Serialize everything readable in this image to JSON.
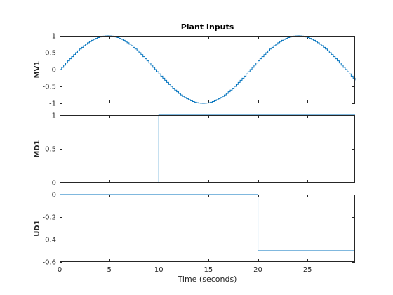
{
  "chart_data": [
    {
      "type": "line",
      "step": true,
      "title": "Plant Inputs",
      "ylabel": "MV1",
      "xlim": [
        0,
        29.8
      ],
      "ylim": [
        -1,
        1
      ],
      "xticks": [
        "0",
        "5",
        "10",
        "15",
        "20",
        "25"
      ],
      "yticks": [
        "1",
        "0.5",
        "0",
        "-0.5",
        "-1"
      ],
      "series": [
        {
          "color": "#0072bd",
          "signal": "sine",
          "amplitude": 1,
          "period_seconds": 19.2,
          "sample_time_seconds": 0.2,
          "start": 0,
          "end": 29.8
        }
      ]
    },
    {
      "type": "line",
      "step": true,
      "ylabel": "MD1",
      "xlim": [
        0,
        29.8
      ],
      "ylim": [
        0,
        1
      ],
      "xticks": [
        "0",
        "5",
        "10",
        "15",
        "20",
        "25"
      ],
      "yticks": [
        "1",
        "0.5",
        "0"
      ],
      "series": [
        {
          "color": "#0072bd",
          "x": [
            0,
            10,
            10,
            29.8
          ],
          "y": [
            0,
            0,
            1,
            1
          ]
        }
      ]
    },
    {
      "type": "line",
      "step": true,
      "ylabel": "UD1",
      "xlabel": "Time (seconds)",
      "xlim": [
        0,
        29.8
      ],
      "ylim": [
        -0.6,
        0
      ],
      "xticks": [
        "0",
        "5",
        "10",
        "15",
        "20",
        "25"
      ],
      "yticks": [
        "0",
        "-0.2",
        "-0.4",
        "-0.6"
      ],
      "series": [
        {
          "color": "#0072bd",
          "x": [
            0,
            20,
            20,
            29.8
          ],
          "y": [
            0,
            0,
            -0.5,
            -0.5
          ]
        }
      ]
    }
  ]
}
